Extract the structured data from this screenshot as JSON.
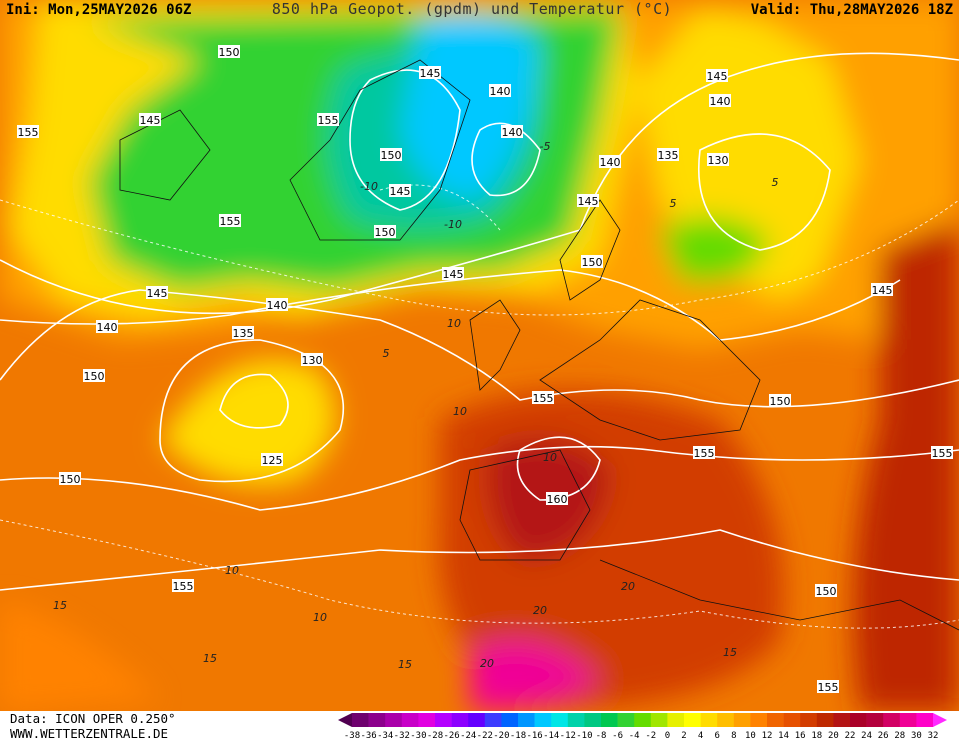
{
  "header": {
    "init": "Ini: Mon,25MAY2026 06Z",
    "title": "850 hPa Geopot. (gpdm) und Temperatur (°C)",
    "valid": "Valid: Thu,28MAY2026 18Z"
  },
  "footer": {
    "source": "Data: ICON OPER 0.250°",
    "site": "WWW.WETTERZENTRALE.DE"
  },
  "colorbar": {
    "labels": [
      -38,
      -36,
      -34,
      -32,
      -30,
      -28,
      -26,
      -24,
      -22,
      -20,
      -18,
      -16,
      -14,
      -12,
      -10,
      -8,
      -6,
      -4,
      -2,
      0,
      2,
      4,
      6,
      8,
      10,
      12,
      14,
      16,
      18,
      20,
      22,
      24,
      26,
      28,
      30,
      32
    ],
    "colors": [
      "#500050",
      "#6e006e",
      "#8c008c",
      "#aa00aa",
      "#c800c8",
      "#e100e1",
      "#b400ff",
      "#8c00ff",
      "#6400ff",
      "#3c3cff",
      "#0064ff",
      "#0096ff",
      "#00c8ff",
      "#00e6e6",
      "#00d2aa",
      "#00c882",
      "#00c850",
      "#32d232",
      "#64dc00",
      "#a0e600",
      "#e6f000",
      "#ffff00",
      "#ffdc00",
      "#ffbe00",
      "#ffa000",
      "#ff8200",
      "#f06400",
      "#e65000",
      "#d23c00",
      "#be2800",
      "#b41414",
      "#aa0028",
      "#b4003c",
      "#d20064",
      "#f00096",
      "#ff00c8",
      "#ff28ff"
    ]
  },
  "geopotential_labels": [
    150,
    145,
    140,
    145,
    155,
    155,
    150,
    145,
    140,
    140,
    135,
    130,
    140,
    145,
    145,
    150,
    155,
    150,
    145,
    140,
    135,
    130,
    125,
    140,
    145,
    150,
    155,
    160,
    155,
    155,
    150,
    150,
    155,
    150,
    145,
    155
  ],
  "temperature_labels": [
    5,
    -5,
    -10,
    -10,
    5,
    10,
    10,
    5,
    10,
    10,
    10,
    15,
    15,
    20,
    20,
    15,
    15,
    20
  ]
}
